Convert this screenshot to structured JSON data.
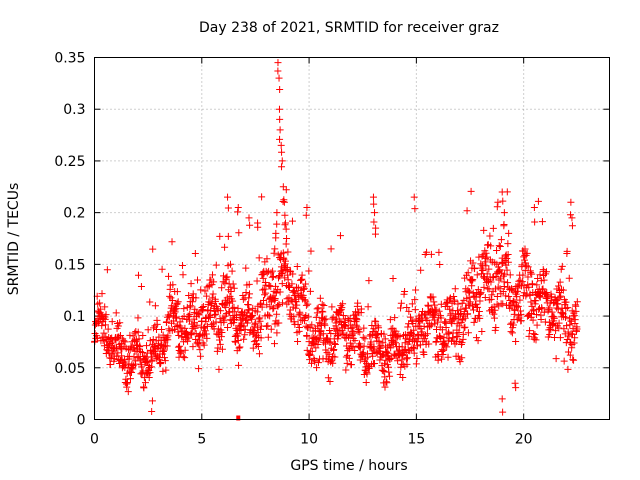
{
  "chart_data": {
    "type": "scatter",
    "title": "Day 238 of 2021, SRMTID for receiver graz",
    "xlabel": "GPS time / hours",
    "ylabel": "SRMTID / TECUs",
    "xlim": [
      0,
      24
    ],
    "ylim": [
      0,
      0.35
    ],
    "grid": true,
    "marker": "+",
    "series_color": "#ff0000",
    "x_ticks": [
      {
        "value": 0,
        "label": "0"
      },
      {
        "value": 5,
        "label": "5"
      },
      {
        "value": 10,
        "label": "10"
      },
      {
        "value": 15,
        "label": "15"
      },
      {
        "value": 20,
        "label": "20"
      }
    ],
    "y_ticks": [
      {
        "value": 0,
        "label": "0"
      },
      {
        "value": 0.05,
        "label": "0.05"
      },
      {
        "value": 0.1,
        "label": "0.1"
      },
      {
        "value": 0.15,
        "label": "0.15"
      },
      {
        "value": 0.2,
        "label": "0.2"
      },
      {
        "value": 0.25,
        "label": "0.25"
      },
      {
        "value": 0.3,
        "label": "0.3"
      },
      {
        "value": 0.35,
        "label": "0.35"
      }
    ],
    "sampling": {
      "x_start": 0.0,
      "x_end": 22.5,
      "x_step": 0.0125,
      "description": "approximate values read from the figure; each sample also plotted with jittered copies"
    },
    "trend": [
      {
        "x": 0.0,
        "y": 0.075,
        "spread": 0.02
      },
      {
        "x": 0.5,
        "y": 0.085,
        "spread": 0.02
      },
      {
        "x": 1.0,
        "y": 0.065,
        "spread": 0.022
      },
      {
        "x": 2.0,
        "y": 0.07,
        "spread": 0.025
      },
      {
        "x": 3.0,
        "y": 0.06,
        "spread": 0.022
      },
      {
        "x": 3.5,
        "y": 0.085,
        "spread": 0.02
      },
      {
        "x": 4.5,
        "y": 0.1,
        "spread": 0.025
      },
      {
        "x": 5.5,
        "y": 0.1,
        "spread": 0.03
      },
      {
        "x": 6.5,
        "y": 0.1,
        "spread": 0.035
      },
      {
        "x": 7.0,
        "y": 0.09,
        "spread": 0.025
      },
      {
        "x": 8.0,
        "y": 0.12,
        "spread": 0.035
      },
      {
        "x": 9.0,
        "y": 0.125,
        "spread": 0.035
      },
      {
        "x": 9.7,
        "y": 0.1,
        "spread": 0.03
      },
      {
        "x": 10.2,
        "y": 0.085,
        "spread": 0.025
      },
      {
        "x": 11.0,
        "y": 0.085,
        "spread": 0.025
      },
      {
        "x": 12.0,
        "y": 0.08,
        "spread": 0.025
      },
      {
        "x": 12.5,
        "y": 0.06,
        "spread": 0.02
      },
      {
        "x": 13.5,
        "y": 0.075,
        "spread": 0.022
      },
      {
        "x": 15.0,
        "y": 0.075,
        "spread": 0.025
      },
      {
        "x": 16.0,
        "y": 0.095,
        "spread": 0.03
      },
      {
        "x": 17.0,
        "y": 0.1,
        "spread": 0.03
      },
      {
        "x": 18.0,
        "y": 0.12,
        "spread": 0.035
      },
      {
        "x": 19.0,
        "y": 0.13,
        "spread": 0.035
      },
      {
        "x": 20.0,
        "y": 0.13,
        "spread": 0.035
      },
      {
        "x": 21.0,
        "y": 0.105,
        "spread": 0.03
      },
      {
        "x": 22.0,
        "y": 0.095,
        "spread": 0.03
      },
      {
        "x": 22.5,
        "y": 0.1,
        "spread": 0.025
      }
    ],
    "spikes": [
      {
        "x": 8.55,
        "y": 0.345
      },
      {
        "x": 8.6,
        "y": 0.33
      },
      {
        "x": 8.62,
        "y": 0.3
      },
      {
        "x": 8.65,
        "y": 0.28
      },
      {
        "x": 8.7,
        "y": 0.265
      },
      {
        "x": 8.75,
        "y": 0.25
      },
      {
        "x": 8.8,
        "y": 0.225
      },
      {
        "x": 8.85,
        "y": 0.21
      },
      {
        "x": 8.9,
        "y": 0.19
      },
      {
        "x": 8.5,
        "y": 0.2
      },
      {
        "x": 8.45,
        "y": 0.18
      },
      {
        "x": 8.4,
        "y": 0.165
      },
      {
        "x": 8.95,
        "y": 0.175
      },
      {
        "x": 13.0,
        "y": 0.215
      },
      {
        "x": 13.05,
        "y": 0.2
      },
      {
        "x": 13.1,
        "y": 0.185
      },
      {
        "x": 14.9,
        "y": 0.215
      },
      {
        "x": 18.8,
        "y": 0.21
      },
      {
        "x": 19.0,
        "y": 0.22
      },
      {
        "x": 19.1,
        "y": 0.2
      },
      {
        "x": 19.3,
        "y": 0.18
      },
      {
        "x": 22.2,
        "y": 0.21
      },
      {
        "x": 22.25,
        "y": 0.195
      },
      {
        "x": 6.2,
        "y": 0.215
      },
      {
        "x": 6.7,
        "y": 0.205
      },
      {
        "x": 7.6,
        "y": 0.19
      },
      {
        "x": 7.2,
        "y": 0.195
      },
      {
        "x": 9.9,
        "y": 0.205
      },
      {
        "x": 20.5,
        "y": 0.205
      },
      {
        "x": 19.0,
        "y": 0.02
      },
      {
        "x": 2.7,
        "y": 0.018
      },
      {
        "x": 19.6,
        "y": 0.035
      }
    ],
    "outlier_marker": {
      "x": 6.7,
      "y": 0.0
    }
  }
}
